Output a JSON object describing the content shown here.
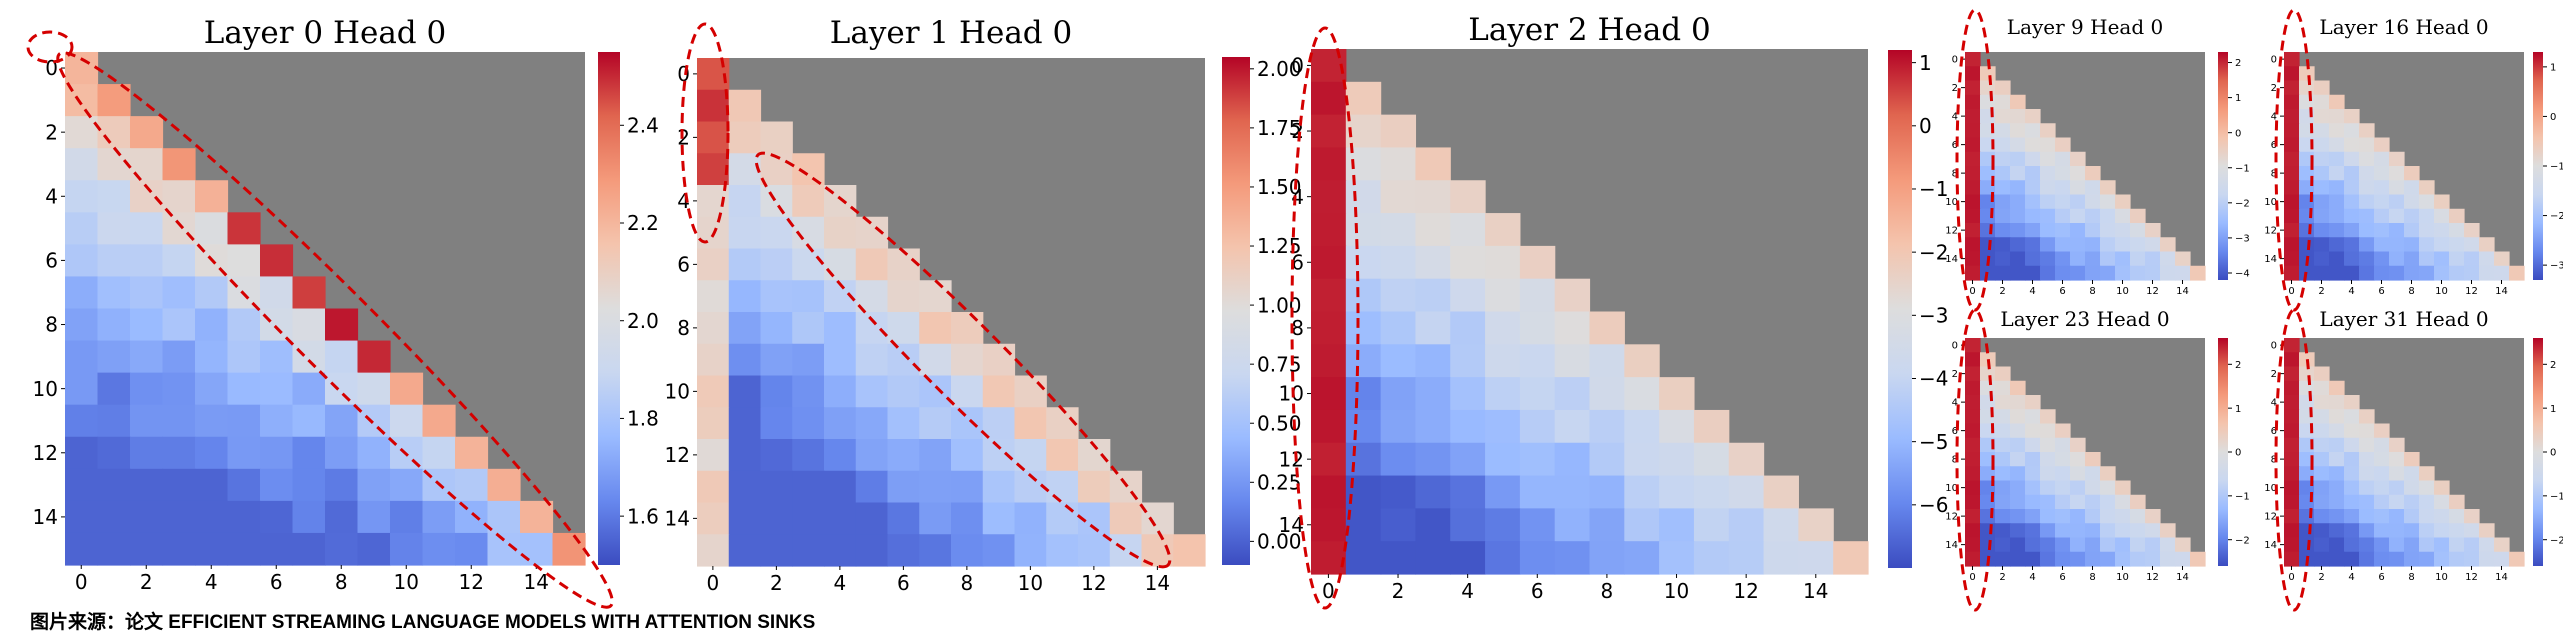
{
  "caption": "图片来源：论文 EFFICIENT STREAMING LANGUAGE MODELS WITH ATTENTION SINKS",
  "colors": {
    "masked": "#808080",
    "cmap": [
      "#3b4cc0",
      "#6788ee",
      "#9abbff",
      "#c9d7f0",
      "#dddddd",
      "#f4c4ad",
      "#f49a7b",
      "#e0654f",
      "#b40426"
    ],
    "annotation": "#d40000"
  },
  "chart_data": [
    {
      "type": "heatmap",
      "title": "Layer 0 Head 0",
      "size": 16,
      "pattern": "diagonal",
      "vmin": 1.5,
      "vmax": 2.55,
      "colorbar_ticks": [
        {
          "v": 1.6,
          "label": "1.6"
        },
        {
          "v": 1.8,
          "label": "1.8"
        },
        {
          "v": 2.0,
          "label": "2.0"
        },
        {
          "v": 2.2,
          "label": "2.2"
        },
        {
          "v": 2.4,
          "label": "2.4"
        }
      ],
      "x_ticks": [
        "0",
        "2",
        "4",
        "6",
        "8",
        "10",
        "12",
        "14"
      ],
      "y_ticks": [
        "0",
        "2",
        "4",
        "6",
        "8",
        "10",
        "12",
        "14"
      ]
    },
    {
      "type": "heatmap",
      "title": "Layer 1 Head 0",
      "size": 16,
      "pattern": "sink_diagonal",
      "vmin": -0.1,
      "vmax": 2.05,
      "colorbar_ticks": [
        {
          "v": 0.0,
          "label": "0.00"
        },
        {
          "v": 0.25,
          "label": "0.25"
        },
        {
          "v": 0.5,
          "label": "0.50"
        },
        {
          "v": 0.75,
          "label": "0.75"
        },
        {
          "v": 1.0,
          "label": "1.00"
        },
        {
          "v": 1.25,
          "label": "1.25"
        },
        {
          "v": 1.5,
          "label": "1.50"
        },
        {
          "v": 1.75,
          "label": "1.75"
        },
        {
          "v": 2.0,
          "label": "2.00"
        }
      ],
      "x_ticks": [
        "0",
        "2",
        "4",
        "6",
        "8",
        "10",
        "12",
        "14"
      ],
      "y_ticks": [
        "0",
        "2",
        "4",
        "6",
        "8",
        "10",
        "12",
        "14"
      ]
    },
    {
      "type": "heatmap",
      "title": "Layer 2 Head 0",
      "size": 16,
      "pattern": "sink",
      "vmin": -7,
      "vmax": 1.2,
      "colorbar_ticks": [
        {
          "v": -6,
          "label": "−6"
        },
        {
          "v": -5,
          "label": "−5"
        },
        {
          "v": -4,
          "label": "−4"
        },
        {
          "v": -3,
          "label": "−3"
        },
        {
          "v": -2,
          "label": "−2"
        },
        {
          "v": -1,
          "label": "−1"
        },
        {
          "v": 0,
          "label": "0"
        },
        {
          "v": 1,
          "label": "1"
        }
      ],
      "x_ticks": [
        "0",
        "2",
        "4",
        "6",
        "8",
        "10",
        "12",
        "14"
      ],
      "y_ticks": [
        "0",
        "2",
        "4",
        "6",
        "8",
        "10",
        "12",
        "14"
      ]
    },
    {
      "type": "heatmap",
      "title": "Layer 9 Head 0",
      "size": 16,
      "pattern": "sink",
      "vmin": -4.2,
      "vmax": 2.3,
      "colorbar_ticks": [
        {
          "v": -4,
          "label": "−4"
        },
        {
          "v": -3,
          "label": "−3"
        },
        {
          "v": -2,
          "label": "−2"
        },
        {
          "v": -1,
          "label": "−1"
        },
        {
          "v": 0,
          "label": "0"
        },
        {
          "v": 1,
          "label": "1"
        },
        {
          "v": 2,
          "label": "2"
        }
      ],
      "x_ticks": [
        "0",
        "2",
        "4",
        "6",
        "8",
        "10",
        "12",
        "14"
      ],
      "y_ticks": [
        "0",
        "2",
        "4",
        "6",
        "8",
        "10",
        "12",
        "14"
      ]
    },
    {
      "type": "heatmap",
      "title": "Layer 16 Head 0",
      "size": 16,
      "pattern": "sink",
      "vmin": -3.3,
      "vmax": 1.3,
      "colorbar_ticks": [
        {
          "v": -3,
          "label": "−3"
        },
        {
          "v": -2,
          "label": "−2"
        },
        {
          "v": -1,
          "label": "−1"
        },
        {
          "v": 0,
          "label": "0"
        },
        {
          "v": 1,
          "label": "1"
        }
      ],
      "x_ticks": [
        "0",
        "2",
        "4",
        "6",
        "8",
        "10",
        "12",
        "14"
      ],
      "y_ticks": [
        "0",
        "2",
        "4",
        "6",
        "8",
        "10",
        "12",
        "14"
      ]
    },
    {
      "type": "heatmap",
      "title": "Layer 23 Head 0",
      "size": 16,
      "pattern": "sink",
      "vmin": -2.6,
      "vmax": 2.6,
      "colorbar_ticks": [
        {
          "v": -2,
          "label": "−2"
        },
        {
          "v": -1,
          "label": "−1"
        },
        {
          "v": 0,
          "label": "0"
        },
        {
          "v": 1,
          "label": "1"
        },
        {
          "v": 2,
          "label": "2"
        }
      ],
      "x_ticks": [
        "0",
        "2",
        "4",
        "6",
        "8",
        "10",
        "12",
        "14"
      ],
      "y_ticks": [
        "0",
        "2",
        "4",
        "6",
        "8",
        "10",
        "12",
        "14"
      ]
    },
    {
      "type": "heatmap",
      "title": "Layer 31 Head 0",
      "size": 16,
      "pattern": "sink",
      "vmin": -2.6,
      "vmax": 2.6,
      "colorbar_ticks": [
        {
          "v": -2,
          "label": "−2"
        },
        {
          "v": -1,
          "label": "−1"
        },
        {
          "v": 0,
          "label": "0"
        },
        {
          "v": 1,
          "label": "1"
        },
        {
          "v": 2,
          "label": "2"
        }
      ],
      "x_ticks": [
        "0",
        "2",
        "4",
        "6",
        "8",
        "10",
        "12",
        "14"
      ],
      "y_ticks": [
        "0",
        "2",
        "4",
        "6",
        "8",
        "10",
        "12",
        "14"
      ]
    }
  ]
}
